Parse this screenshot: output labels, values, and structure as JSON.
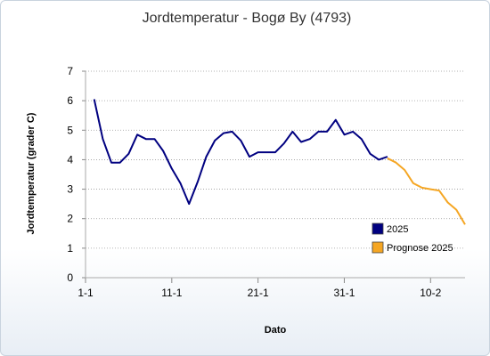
{
  "chart_data": {
    "type": "line",
    "title": "Jordtemperatur - Bogø By (4793)",
    "xlabel": "Dato",
    "ylabel": "Jordtemperatur (grader C)",
    "ylim": [
      0,
      7
    ],
    "yticks": [
      0,
      1,
      2,
      3,
      4,
      5,
      6,
      7
    ],
    "xlim": [
      "2025-01-01",
      "2025-02-14"
    ],
    "xticks": [
      {
        "date": "2025-01-01",
        "label": "1-1"
      },
      {
        "date": "2025-01-11",
        "label": "11-1"
      },
      {
        "date": "2025-01-21",
        "label": "21-1"
      },
      {
        "date": "2025-01-31",
        "label": "31-1"
      },
      {
        "date": "2025-02-10",
        "label": "10-2"
      }
    ],
    "grid": true,
    "legend_position": "bottom-right",
    "series": [
      {
        "name": "2025",
        "color": "#000080",
        "x": [
          "2025-01-02",
          "2025-01-03",
          "2025-01-04",
          "2025-01-05",
          "2025-01-06",
          "2025-01-07",
          "2025-01-08",
          "2025-01-09",
          "2025-01-10",
          "2025-01-11",
          "2025-01-12",
          "2025-01-13",
          "2025-01-14",
          "2025-01-15",
          "2025-01-16",
          "2025-01-17",
          "2025-01-18",
          "2025-01-19",
          "2025-01-20",
          "2025-01-21",
          "2025-01-22",
          "2025-01-23",
          "2025-01-24",
          "2025-01-25",
          "2025-01-26",
          "2025-01-27",
          "2025-01-28",
          "2025-01-29",
          "2025-01-30",
          "2025-01-31",
          "2025-02-01",
          "2025-02-02",
          "2025-02-03",
          "2025-02-04",
          "2025-02-05"
        ],
        "values": [
          6.05,
          4.7,
          3.9,
          3.9,
          4.2,
          4.85,
          4.7,
          4.7,
          4.3,
          3.7,
          3.2,
          2.5,
          3.25,
          4.1,
          4.65,
          4.9,
          4.95,
          4.65,
          4.1,
          4.25,
          4.25,
          4.25,
          4.55,
          4.95,
          4.6,
          4.7,
          4.95,
          4.95,
          5.35,
          4.85,
          4.95,
          4.7,
          4.2,
          4.0,
          4.1
        ]
      },
      {
        "name": "Prognose 2025",
        "color": "#f5a623",
        "x": [
          "2025-02-05",
          "2025-02-06",
          "2025-02-07",
          "2025-02-08",
          "2025-02-09",
          "2025-02-10",
          "2025-02-11",
          "2025-02-12",
          "2025-02-13",
          "2025-02-14"
        ],
        "values": [
          4.05,
          3.9,
          3.65,
          3.2,
          3.05,
          3.0,
          2.95,
          2.55,
          2.3,
          1.8
        ]
      }
    ]
  }
}
